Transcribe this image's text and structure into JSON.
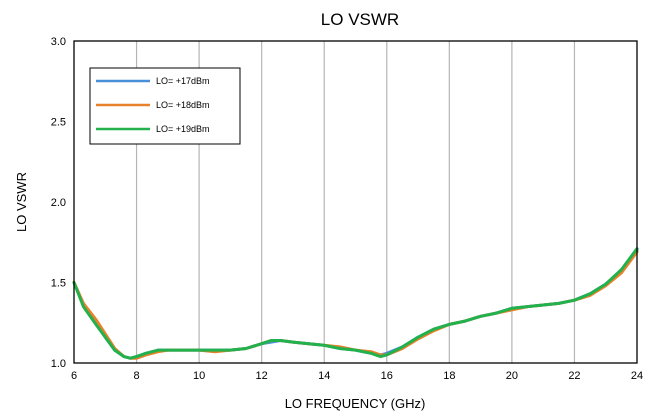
{
  "chart_data": {
    "type": "line",
    "title": "LO VSWR",
    "xlabel": "LO FREQUENCY (GHz)",
    "ylabel": "LO VSWR",
    "xlim": [
      6,
      24
    ],
    "ylim": [
      1.0,
      3.0
    ],
    "xticks": [
      "6",
      "8",
      "10",
      "12",
      "14",
      "16",
      "18",
      "20",
      "22",
      "24"
    ],
    "yticks": [
      "1.0",
      "1.5",
      "2.0",
      "2.5",
      "3.0"
    ],
    "grid": "vertical",
    "legend_position": "top-left",
    "series": [
      {
        "name": "LO= +17dBm",
        "color": "#4a90d9",
        "x": [
          6,
          6.3,
          6.7,
          7,
          7.3,
          7.6,
          7.8,
          8,
          8.3,
          8.7,
          9,
          9.5,
          10,
          10.5,
          11,
          11.5,
          12,
          12.3,
          12.6,
          13,
          13.5,
          14,
          14.5,
          15,
          15.5,
          15.8,
          16,
          16.5,
          17,
          17.5,
          18,
          18.5,
          19,
          19.5,
          20,
          20.5,
          21,
          21.5,
          22,
          22.5,
          23,
          23.5,
          24
        ],
        "values": [
          1.5,
          1.36,
          1.25,
          1.16,
          1.08,
          1.04,
          1.03,
          1.04,
          1.06,
          1.08,
          1.08,
          1.08,
          1.08,
          1.08,
          1.08,
          1.09,
          1.12,
          1.13,
          1.14,
          1.13,
          1.12,
          1.11,
          1.09,
          1.08,
          1.06,
          1.05,
          1.06,
          1.1,
          1.16,
          1.21,
          1.24,
          1.26,
          1.29,
          1.31,
          1.34,
          1.35,
          1.36,
          1.37,
          1.39,
          1.43,
          1.49,
          1.57,
          1.7
        ]
      },
      {
        "name": "LO= +18dBm",
        "color": "#e8822a",
        "x": [
          6,
          6.3,
          6.7,
          7,
          7.3,
          7.6,
          7.8,
          8,
          8.3,
          8.7,
          9,
          9.5,
          10,
          10.5,
          11,
          11.5,
          12,
          12.3,
          12.6,
          13,
          13.5,
          14,
          14.5,
          15,
          15.5,
          15.8,
          16,
          16.5,
          17,
          17.5,
          18,
          18.5,
          19,
          19.5,
          20,
          20.5,
          21,
          21.5,
          22,
          22.5,
          23,
          23.5,
          24
        ],
        "values": [
          1.5,
          1.37,
          1.27,
          1.18,
          1.09,
          1.04,
          1.03,
          1.03,
          1.05,
          1.07,
          1.08,
          1.08,
          1.08,
          1.07,
          1.08,
          1.09,
          1.12,
          1.14,
          1.14,
          1.13,
          1.12,
          1.11,
          1.1,
          1.08,
          1.07,
          1.05,
          1.05,
          1.09,
          1.15,
          1.2,
          1.24,
          1.26,
          1.29,
          1.31,
          1.33,
          1.35,
          1.36,
          1.37,
          1.39,
          1.42,
          1.48,
          1.56,
          1.69
        ]
      },
      {
        "name": "LO= +19dBm",
        "color": "#22b14c",
        "x": [
          6,
          6.3,
          6.7,
          7,
          7.3,
          7.6,
          7.8,
          8,
          8.3,
          8.7,
          9,
          9.5,
          10,
          10.5,
          11,
          11.5,
          12,
          12.3,
          12.6,
          13,
          13.5,
          14,
          14.5,
          15,
          15.5,
          15.8,
          16,
          16.5,
          17,
          17.5,
          18,
          18.5,
          19,
          19.5,
          20,
          20.5,
          21,
          21.5,
          22,
          22.5,
          23,
          23.5,
          24
        ],
        "values": [
          1.5,
          1.35,
          1.24,
          1.16,
          1.08,
          1.04,
          1.03,
          1.04,
          1.06,
          1.08,
          1.08,
          1.08,
          1.08,
          1.08,
          1.08,
          1.09,
          1.12,
          1.14,
          1.14,
          1.13,
          1.12,
          1.11,
          1.09,
          1.08,
          1.06,
          1.04,
          1.05,
          1.1,
          1.16,
          1.21,
          1.24,
          1.26,
          1.29,
          1.31,
          1.34,
          1.35,
          1.36,
          1.37,
          1.39,
          1.43,
          1.49,
          1.58,
          1.71
        ]
      }
    ]
  }
}
